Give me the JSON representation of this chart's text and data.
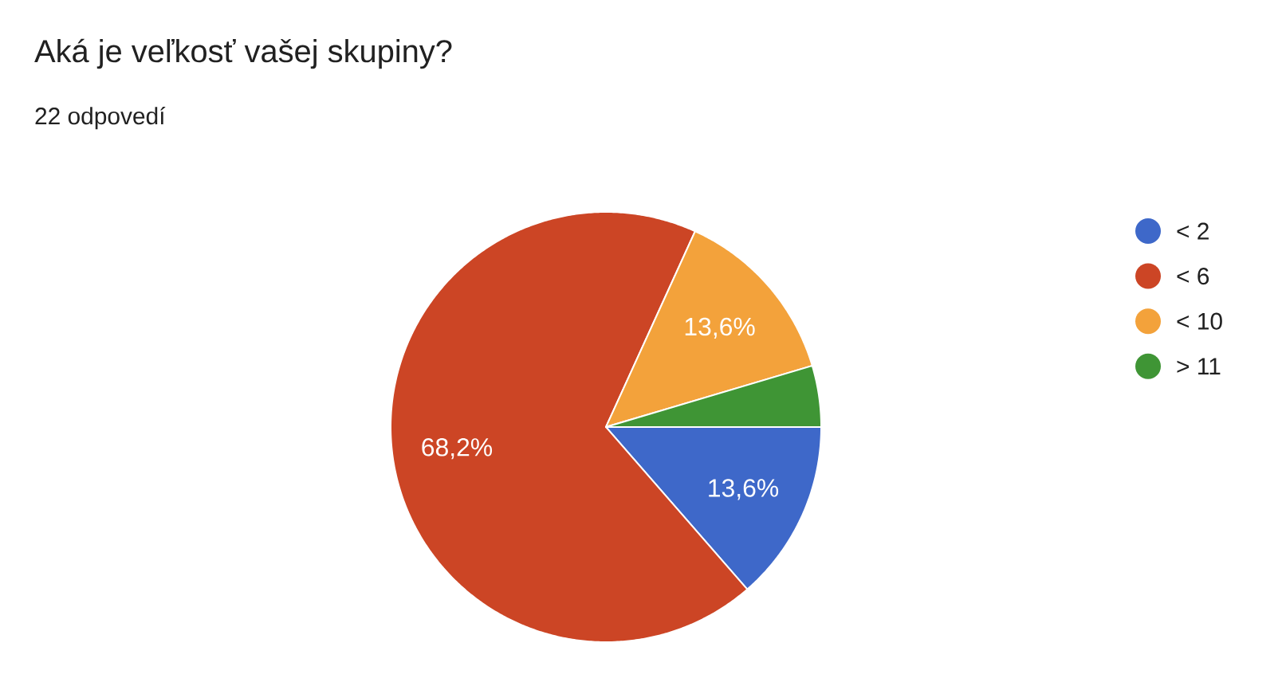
{
  "chart_data": {
    "type": "pie",
    "title": "Aká je veľkosť vašej skupiny?",
    "subtitle": "22 odpovedí",
    "categories": [
      "< 2",
      "< 6",
      "< 10",
      "> 11"
    ],
    "values": [
      13.6,
      68.2,
      13.6,
      4.6
    ],
    "colors": [
      "#3e68c9",
      "#cc4525",
      "#f3a23b",
      "#3f9535"
    ],
    "value_labels": [
      "13,6%",
      "68,2%",
      "13,6%",
      null
    ],
    "legend": "right"
  }
}
